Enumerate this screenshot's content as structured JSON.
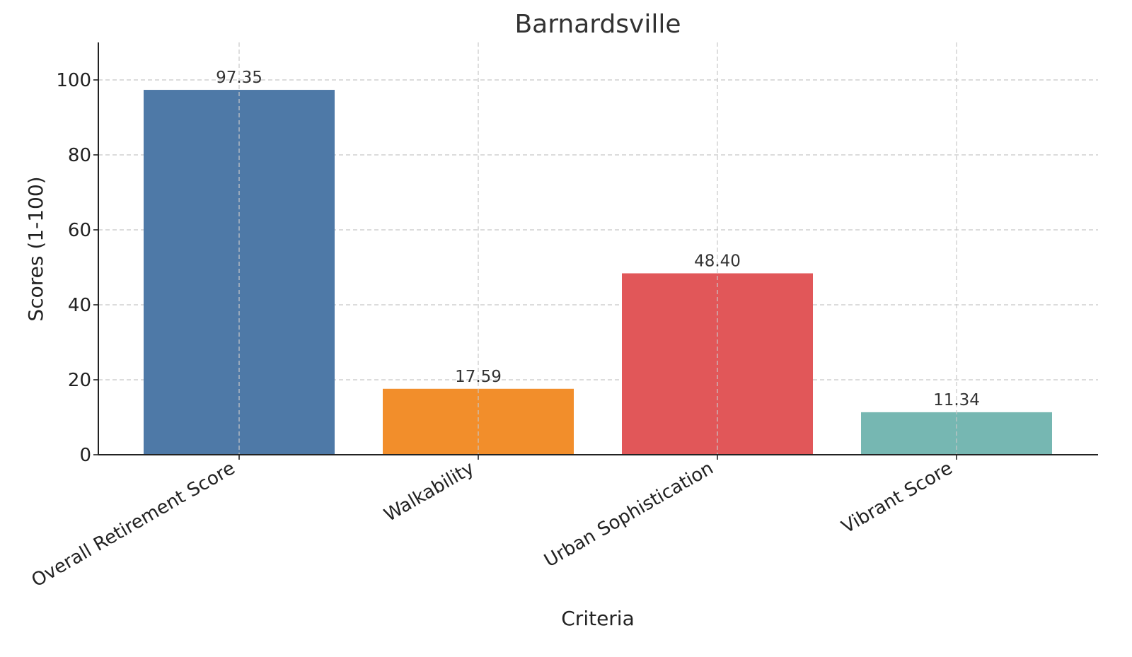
{
  "chart_data": {
    "type": "bar",
    "title": "Barnardsville",
    "xlabel": "Criteria",
    "ylabel": "Scores (1-100)",
    "categories": [
      "Overall Retirement Score",
      "Walkability",
      "Urban Sophistication",
      "Vibrant Score"
    ],
    "values": [
      97.35,
      17.59,
      48.4,
      11.34
    ],
    "value_labels": [
      "97.35",
      "17.59",
      "48.40",
      "11.34"
    ],
    "colors": [
      "#4e79a7",
      "#f28e2b",
      "#e15759",
      "#76b7b2"
    ],
    "ylim": [
      0,
      110
    ],
    "yticks": [
      0,
      20,
      40,
      60,
      80,
      100
    ],
    "grid": true
  }
}
